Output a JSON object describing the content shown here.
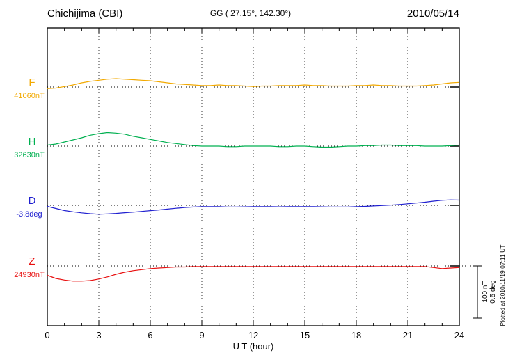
{
  "chart_data": {
    "type": "line",
    "title": "Chichijima (CBI)",
    "coords": "GG ( 27.15°, 142.30°)",
    "date": "2010/05/14",
    "xlabel": "U T (hour)",
    "x_range": [
      0,
      24
    ],
    "x_ticks": [
      0,
      3,
      6,
      9,
      12,
      15,
      18,
      21,
      24
    ],
    "x_minor_step": 1,
    "sample_step_hours": 0.5,
    "grid": "dotted vertical gridlines every 3 hours; dotted horizontal baseline per trace",
    "legend_position": "left",
    "scale_bar": {
      "nT": 100,
      "deg": 0.5,
      "labels": [
        "100 nT",
        "0.5 deg"
      ]
    },
    "plotted_at": "Plotted at 2010/11/19 07:11 UT",
    "series": [
      {
        "name": "F",
        "unit": "nT",
        "baseline_label": "41060nT",
        "baseline_value": 41060,
        "color": "#f2a900",
        "values": [
          -3,
          -2,
          1,
          4,
          8,
          11,
          13,
          15,
          16,
          15,
          14,
          13,
          12,
          10,
          8,
          6,
          5,
          4,
          3,
          3,
          4,
          3,
          3,
          2,
          1,
          2,
          2,
          3,
          3,
          3,
          4,
          3,
          3,
          2,
          2,
          2,
          3,
          3,
          4,
          3,
          3,
          2,
          2,
          2,
          3,
          4,
          6,
          8,
          9
        ]
      },
      {
        "name": "H",
        "unit": "nT",
        "baseline_label": "32630nT",
        "baseline_value": 32630,
        "color": "#00b050",
        "values": [
          2,
          4,
          8,
          12,
          16,
          21,
          24,
          26,
          25,
          23,
          19,
          16,
          13,
          10,
          7,
          5,
          3,
          1,
          0,
          0,
          0,
          -1,
          -1,
          0,
          0,
          0,
          0,
          -1,
          -1,
          0,
          0,
          -1,
          -2,
          -2,
          -1,
          0,
          0,
          1,
          1,
          2,
          2,
          1,
          1,
          1,
          0,
          0,
          0,
          1,
          2
        ]
      },
      {
        "name": "D",
        "unit": "deg",
        "baseline_label": "-3.8deg",
        "baseline_value": -3.8,
        "color": "#2020d0",
        "values": [
          -0.01,
          -0.03,
          -0.05,
          -0.062,
          -0.072,
          -0.08,
          -0.085,
          -0.082,
          -0.077,
          -0.071,
          -0.065,
          -0.058,
          -0.051,
          -0.044,
          -0.036,
          -0.028,
          -0.021,
          -0.016,
          -0.013,
          -0.012,
          -0.013,
          -0.015,
          -0.016,
          -0.014,
          -0.013,
          -0.013,
          -0.013,
          -0.014,
          -0.013,
          -0.013,
          -0.013,
          -0.013,
          -0.014,
          -0.016,
          -0.016,
          -0.015,
          -0.013,
          -0.01,
          -0.006,
          -0.002,
          0.002,
          0.008,
          0.015,
          0.022,
          0.03,
          0.04,
          0.048,
          0.052,
          0.05
        ]
      },
      {
        "name": "Z",
        "unit": "nT",
        "baseline_label": "24930nT",
        "baseline_value": 24930,
        "color": "#e81010",
        "values": [
          -18,
          -24,
          -27,
          -29,
          -29,
          -28,
          -25,
          -21,
          -16,
          -12,
          -9,
          -7,
          -5,
          -4,
          -3,
          -2,
          -2,
          -1,
          -1,
          -1,
          -1,
          -1,
          -1,
          -1,
          -1,
          -1,
          -1,
          -1,
          -1,
          -1,
          -1,
          -1,
          -1,
          -1,
          -1,
          -1,
          -1,
          -1,
          -1,
          -1,
          -1,
          -1,
          -1,
          -1,
          -1,
          -3,
          -5,
          -4,
          -3
        ]
      }
    ]
  }
}
